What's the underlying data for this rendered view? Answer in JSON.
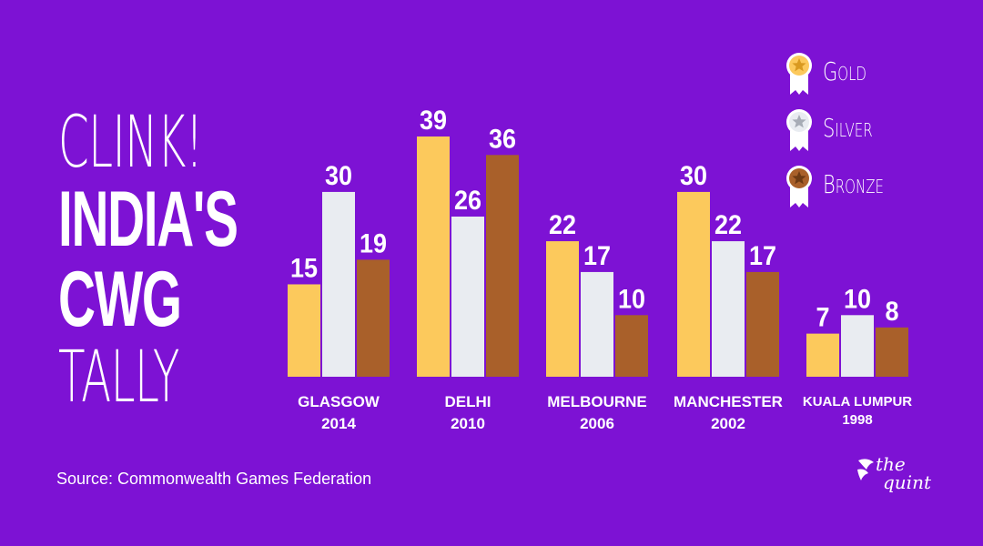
{
  "headline": {
    "line1": "CLINK!",
    "line2": "INDIA'S",
    "line3": "CWG",
    "line4": "TALLY"
  },
  "legend": {
    "gold": "Gold",
    "silver": "Silver",
    "bronze": "Bronze"
  },
  "colors": {
    "background": "#7d12d4",
    "gold": "#fcc95c",
    "silver": "#e9ecf1",
    "bronze": "#a9602a",
    "text": "#ffffff"
  },
  "source": "Source: Commonwealth Games Federation",
  "logo": {
    "line1": "the",
    "line2": "quint"
  },
  "chart_data": {
    "type": "bar",
    "title": "CLINK! INDIA'S CWG TALLY",
    "xlabel": "",
    "ylabel": "",
    "ylim": [
      0,
      39
    ],
    "grid": false,
    "legend_position": "top-right",
    "categories": [
      {
        "name": "GLASGOW",
        "year": "2014"
      },
      {
        "name": "DELHI",
        "year": "2010"
      },
      {
        "name": "MELBOURNE",
        "year": "2006"
      },
      {
        "name": "MANCHESTER",
        "year": "2002"
      },
      {
        "name": "KUALA LUMPUR",
        "year": "1998"
      }
    ],
    "series": [
      {
        "name": "Gold",
        "key": "gold",
        "values": [
          15,
          39,
          22,
          30,
          7
        ]
      },
      {
        "name": "Silver",
        "key": "silver",
        "values": [
          30,
          26,
          17,
          22,
          10
        ]
      },
      {
        "name": "Bronze",
        "key": "bronze",
        "values": [
          19,
          36,
          10,
          17,
          8
        ]
      }
    ]
  }
}
